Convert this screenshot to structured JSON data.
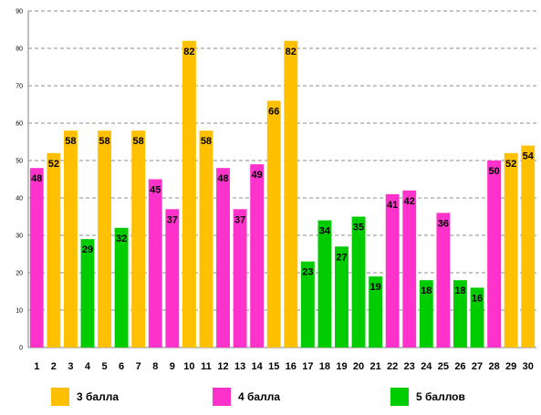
{
  "chart_data": {
    "type": "bar",
    "categories": [
      "1",
      "2",
      "3",
      "4",
      "5",
      "6",
      "7",
      "8",
      "9",
      "10",
      "11",
      "12",
      "13",
      "14",
      "15",
      "16",
      "17",
      "18",
      "19",
      "20",
      "21",
      "22",
      "23",
      "24",
      "25",
      "26",
      "27",
      "28",
      "29",
      "30"
    ],
    "values": [
      48,
      52,
      58,
      29,
      58,
      32,
      58,
      45,
      37,
      82,
      58,
      48,
      37,
      49,
      66,
      82,
      23,
      34,
      27,
      35,
      19,
      41,
      42,
      18,
      36,
      18,
      16,
      50,
      52,
      54
    ],
    "groups": [
      "4",
      "3",
      "3",
      "5",
      "3",
      "5",
      "3",
      "4",
      "4",
      "3",
      "3",
      "4",
      "4",
      "4",
      "3",
      "3",
      "5",
      "5",
      "5",
      "5",
      "5",
      "4",
      "4",
      "5",
      "4",
      "5",
      "5",
      "4",
      "3",
      "3"
    ],
    "ylim": [
      0,
      90
    ],
    "yticks": [
      0,
      10,
      20,
      30,
      40,
      50,
      60,
      70,
      80,
      90
    ],
    "grid": true,
    "legend_position": "bottom",
    "legend": [
      {
        "key": "3",
        "label": "3 балла",
        "color": "#FFC000"
      },
      {
        "key": "4",
        "label": "4 балла",
        "color": "#FF33CC"
      },
      {
        "key": "5",
        "label": "5 баллов",
        "color": "#00CC00"
      }
    ]
  }
}
